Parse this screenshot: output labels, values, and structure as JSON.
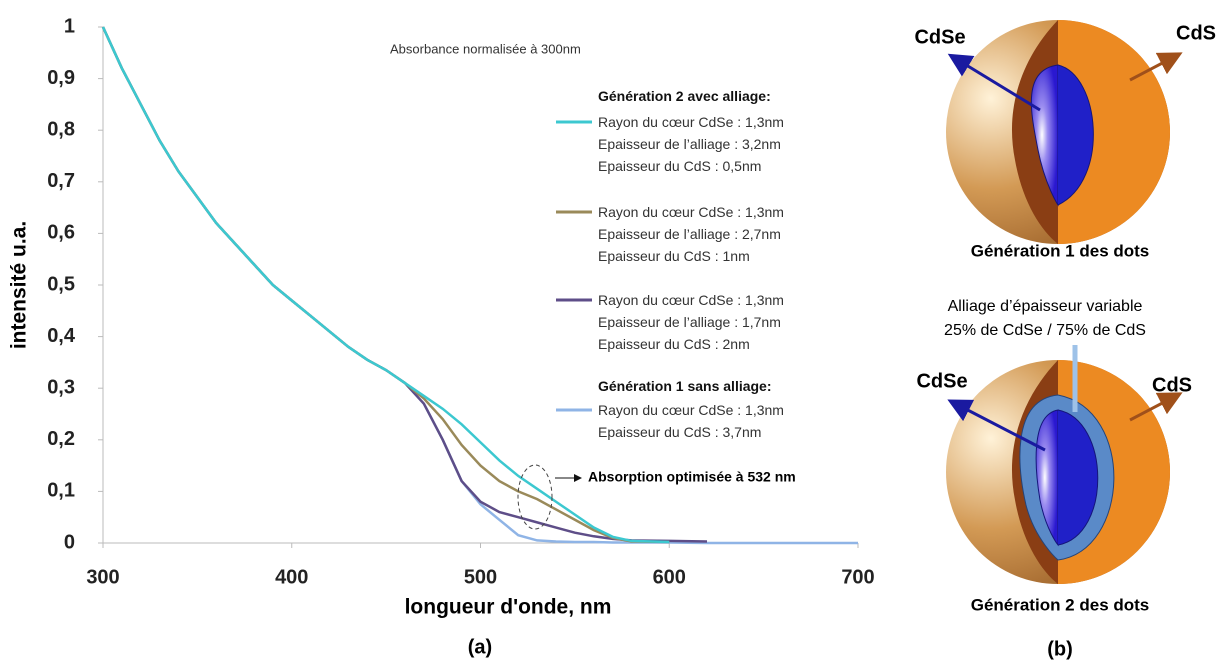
{
  "chart_data": {
    "type": "line",
    "annotation": "Absorbance normalisée à 300nm",
    "callout": "Absorption optimisée à 532 nm",
    "xlabel": "longueur d'onde, nm",
    "ylabel": "intensité u.a.",
    "caption": "(a)",
    "legend_headings": [
      "Génération 2 avec alliage:",
      "Génération 1 sans alliage:"
    ],
    "x": [
      300,
      310,
      320,
      330,
      340,
      350,
      360,
      370,
      380,
      390,
      400,
      410,
      420,
      430,
      440,
      450,
      460,
      470,
      480,
      490,
      500,
      510,
      520,
      530,
      540,
      550,
      560,
      570,
      580,
      600,
      620,
      640,
      660,
      680,
      700
    ],
    "xlim": [
      300,
      700
    ],
    "xticks": [
      300,
      400,
      500,
      600,
      700
    ],
    "ylim": [
      0,
      1
    ],
    "yticks": [
      0,
      {
        "value": 0.1,
        "label": "0,1"
      },
      {
        "value": 0.2,
        "label": "0,2"
      },
      {
        "value": 0.3,
        "label": "0,3"
      },
      {
        "value": 0.4,
        "label": "0,4"
      },
      {
        "value": 0.5,
        "label": "0,5"
      },
      {
        "value": 0.6,
        "label": "0,6"
      },
      {
        "value": 0.7,
        "label": "0,7"
      },
      {
        "value": 0.8,
        "label": "0,8"
      },
      {
        "value": 0.9,
        "label": "0,9"
      },
      1
    ],
    "series": [
      {
        "name": "Rayon du cœur CdSe : 1,3nm\nEpaisseur de l’alliage : 3,2nm\nEpaisseur du CdS : 0,5nm",
        "color": "#3cc8d0",
        "values": [
          1,
          0.92,
          0.85,
          0.78,
          0.72,
          0.67,
          0.62,
          0.58,
          0.54,
          0.5,
          0.47,
          0.44,
          0.41,
          0.38,
          0.355,
          0.335,
          0.31,
          0.285,
          0.26,
          0.23,
          0.195,
          0.16,
          0.13,
          0.105,
          0.08,
          0.055,
          0.03,
          0.012,
          0.004,
          0.002,
          null,
          null,
          null,
          null,
          null
        ]
      },
      {
        "name": "Rayon du cœur CdSe : 1,3nm\nEpaisseur de l’alliage : 2,7nm\nEpaisseur du CdS : 1nm",
        "color": "#9a8a5a",
        "values": [
          1,
          0.92,
          0.85,
          0.78,
          0.72,
          0.67,
          0.62,
          0.58,
          0.54,
          0.5,
          0.47,
          0.44,
          0.41,
          0.38,
          0.355,
          0.335,
          0.31,
          0.28,
          0.24,
          0.19,
          0.15,
          0.12,
          0.1,
          0.085,
          0.065,
          0.045,
          0.025,
          0.01,
          0.003,
          0.002,
          null,
          null,
          null,
          null,
          null
        ]
      },
      {
        "name": "Rayon du cœur CdSe : 1,3nm\nEpaisseur de l’alliage : 1,7nm\nEpaisseur du CdS : 2nm",
        "color": "#5e4e88",
        "values": [
          1,
          0.92,
          0.85,
          0.78,
          0.72,
          0.67,
          0.62,
          0.58,
          0.54,
          0.5,
          0.47,
          0.44,
          0.41,
          0.38,
          0.355,
          0.335,
          0.31,
          0.27,
          0.2,
          0.12,
          0.08,
          0.06,
          0.05,
          0.04,
          0.03,
          0.02,
          0.013,
          0.008,
          0.005,
          0.004,
          0.003,
          null,
          null,
          null,
          null
        ]
      },
      {
        "name": "Rayon du cœur CdSe : 1,3nm\nEpaisseur du CdS : 3,7nm",
        "color": "#8fb4e6",
        "values": [
          1,
          0.92,
          0.85,
          0.78,
          0.72,
          0.67,
          0.62,
          0.58,
          0.54,
          0.5,
          0.47,
          0.44,
          0.41,
          0.38,
          0.355,
          0.335,
          0.31,
          0.27,
          0.2,
          0.12,
          0.075,
          0.045,
          0.015,
          0.005,
          0.003,
          0.002,
          0.002,
          0.001,
          0.001,
          0.001,
          0,
          0,
          0,
          0,
          0
        ]
      }
    ]
  },
  "diagram": {
    "top_core": "CdSe",
    "top_shell": "CdS",
    "top_caption": "Génération 1 des dots",
    "alloy_line1": "Alliage d’épaisseur variable",
    "alloy_line2": "25% de CdSe / 75% de CdS",
    "bottom_core": "CdSe",
    "bottom_shell": "CdS",
    "bottom_caption": "Génération 2 des dots",
    "caption": "(b)"
  }
}
